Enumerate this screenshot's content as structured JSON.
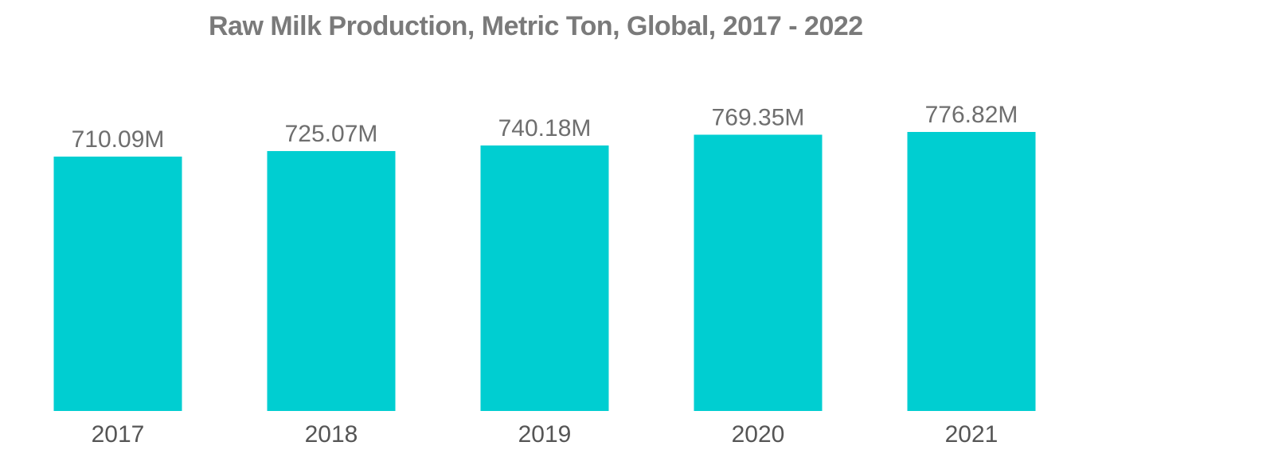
{
  "chart_data": {
    "type": "bar",
    "title": "Raw Milk Production, Metric Ton, Global, 2017 - 2022",
    "categories": [
      "2017",
      "2018",
      "2019",
      "2020",
      "2021"
    ],
    "values": [
      710.09,
      725.07,
      740.18,
      769.35,
      776.82
    ],
    "value_labels": [
      "710.09M",
      "725.07M",
      "740.18M",
      "769.35M",
      "776.82M"
    ],
    "unit": "M",
    "xlabel": "",
    "ylabel": "",
    "grid": false,
    "legend": "none",
    "bar_color": "#00ced1"
  }
}
